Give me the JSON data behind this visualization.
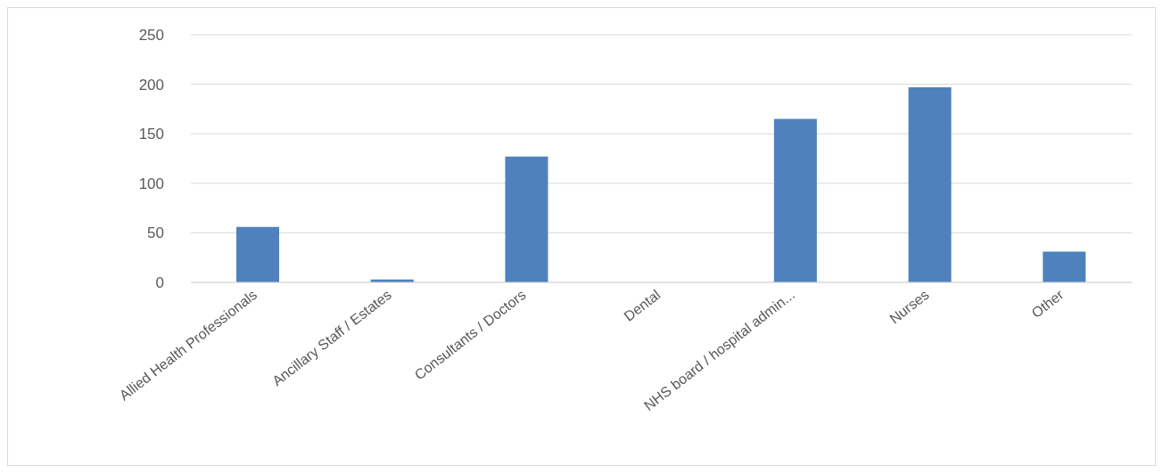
{
  "chart_data": {
    "type": "bar",
    "categories": [
      "Allied Health Professionals",
      "Ancillary Staff / Estates",
      "Consultants / Doctors",
      "Dental",
      "NHS board / hospital admin...",
      "Nurses",
      "Other"
    ],
    "values": [
      56,
      3,
      127,
      0,
      165,
      197,
      31
    ],
    "color": "#4f81bd",
    "ylim": [
      0,
      250
    ],
    "yticks": [
      0,
      50,
      100,
      150,
      200,
      250
    ],
    "grid": "y"
  }
}
